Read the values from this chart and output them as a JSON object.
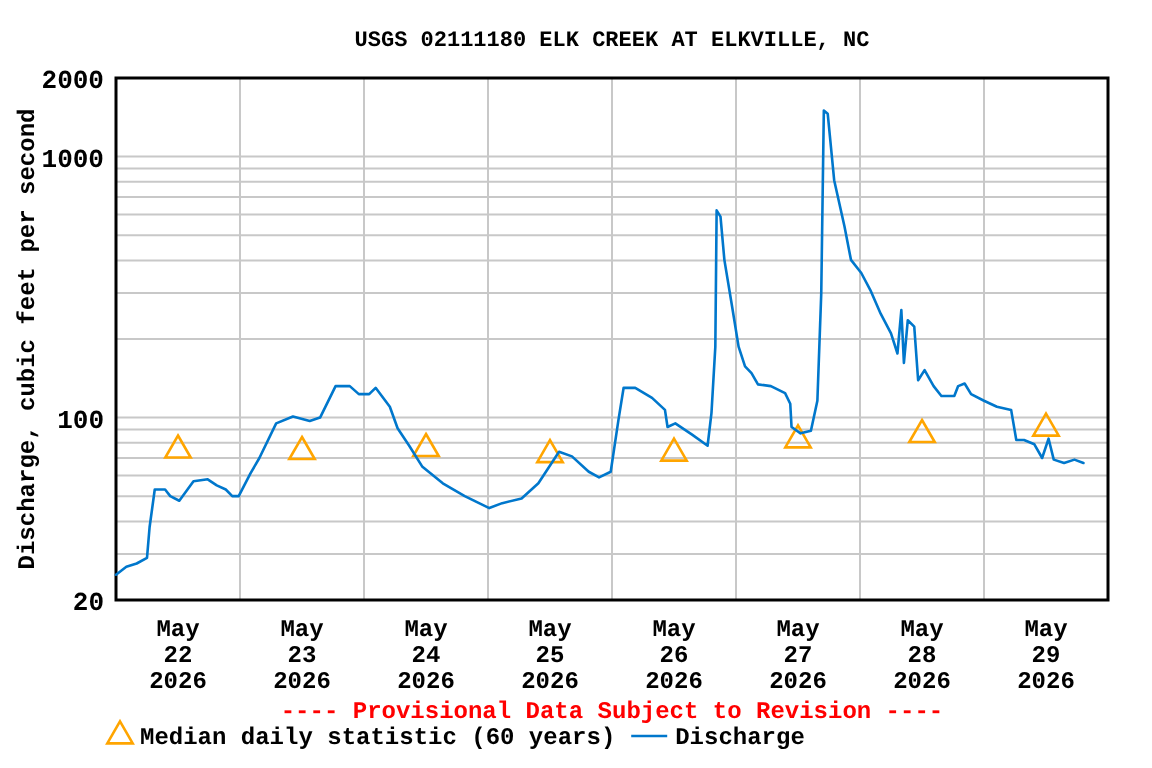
{
  "chart_data": {
    "type": "line",
    "title": "USGS 02111180 ELK CREEK AT ELKVILLE, NC",
    "ylabel": "Discharge, cubic feet per second",
    "annotations": [
      "---- Provisional Data Subject to Revision ----"
    ],
    "log": "y",
    "grid": true,
    "legend": "bottom",
    "xlim": [
      "2026-05-22T00:00",
      "2026-05-30T00:00"
    ],
    "xticks": [
      {
        "value": "2026-05-22T00:00",
        "label": null
      },
      {
        "value": "2026-05-22T12:00",
        "label": "May\n22\n2026"
      },
      {
        "value": "2026-05-23T00:00",
        "label": null
      },
      {
        "value": "2026-05-23T12:00",
        "label": "May\n23\n2026"
      },
      {
        "value": "2026-05-24T00:00",
        "label": null
      },
      {
        "value": "2026-05-24T12:00",
        "label": "May\n24\n2026"
      },
      {
        "value": "2026-05-25T00:00",
        "label": null
      },
      {
        "value": "2026-05-25T12:00",
        "label": "May\n25\n2026"
      },
      {
        "value": "2026-05-26T00:00",
        "label": null
      },
      {
        "value": "2026-05-26T12:00",
        "label": "May\n26\n2026"
      },
      {
        "value": "2026-05-27T00:00",
        "label": null
      },
      {
        "value": "2026-05-27T12:00",
        "label": "May\n27\n2026"
      },
      {
        "value": "2026-05-28T00:00",
        "label": null
      },
      {
        "value": "2026-05-28T12:00",
        "label": "May\n28\n2026"
      },
      {
        "value": "2026-05-29T00:00",
        "label": null
      },
      {
        "value": "2026-05-29T12:00",
        "label": "May\n29\n2026"
      },
      {
        "value": "2026-05-30T00:00",
        "label": null
      }
    ],
    "ylim": [
      20,
      2000
    ],
    "yticks": [
      20,
      {
        "value": 30,
        "label": null
      },
      {
        "value": 40,
        "label": null
      },
      {
        "value": 50,
        "label": null
      },
      {
        "value": 60,
        "label": null
      },
      {
        "value": 70,
        "label": null
      },
      {
        "value": 80,
        "label": null
      },
      {
        "value": 90,
        "label": null
      },
      100,
      {
        "value": 200,
        "label": null
      },
      {
        "value": 300,
        "label": null
      },
      {
        "value": 400,
        "label": null
      },
      {
        "value": 500,
        "label": null
      },
      {
        "value": 600,
        "label": null
      },
      {
        "value": 700,
        "label": null
      },
      {
        "value": 800,
        "label": null
      },
      {
        "value": 900,
        "label": null
      },
      1000,
      2000
    ],
    "series": [
      {
        "name": "Median daily statistic (60 years)",
        "type": "scatter",
        "marker": "triangle",
        "color": "#ffa500",
        "x": [
          "2026-05-22T12:00",
          "2026-05-23T12:00",
          "2026-05-24T12:00",
          "2026-05-25T12:00",
          "2026-05-26T12:00",
          "2026-05-27T12:00",
          "2026-05-28T12:00",
          "2026-05-29T12:00"
        ],
        "values": [
          75,
          74,
          76,
          72,
          73,
          82,
          86,
          91
        ]
      },
      {
        "name": "Discharge",
        "marker": "none",
        "line_style": "solid",
        "color": "#0077cc",
        "x": [
          "2026-05-22T00:00",
          "2026-05-22T02:00",
          "2026-05-22T04:00",
          "2026-05-22T06:00",
          "2026-05-22T06:30",
          "2026-05-22T07:30",
          "2026-05-22T09:30",
          "2026-05-22T10:30",
          "2026-05-22T12:15",
          "2026-05-22T15:00",
          "2026-05-22T17:45",
          "2026-05-22T19:30",
          "2026-05-22T21:15",
          "2026-05-22T22:30",
          "2026-05-22T23:45",
          "2026-05-23T02:00",
          "2026-05-23T03:45",
          "2026-05-23T07:00",
          "2026-05-23T10:15",
          "2026-05-23T13:30",
          "2026-05-23T15:30",
          "2026-05-23T18:30",
          "2026-05-23T21:15",
          "2026-05-23T23:00",
          "2026-05-24T01:00",
          "2026-05-24T02:15",
          "2026-05-24T05:00",
          "2026-05-24T06:30",
          "2026-05-24T08:45",
          "2026-05-24T11:15",
          "2026-05-24T15:15",
          "2026-05-24T19:30",
          "2026-05-25T00:15",
          "2026-05-25T02:45",
          "2026-05-25T06:30",
          "2026-05-25T09:45",
          "2026-05-25T13:45",
          "2026-05-25T16:15",
          "2026-05-25T19:30",
          "2026-05-25T21:30",
          "2026-05-25T23:45",
          "2026-05-26T01:15",
          "2026-05-26T02:15",
          "2026-05-26T04:30",
          "2026-05-26T07:45",
          "2026-05-26T10:15",
          "2026-05-26T10:45",
          "2026-05-26T12:15",
          "2026-05-26T15:30",
          "2026-05-26T18:30",
          "2026-05-26T19:15",
          "2026-05-26T20:00",
          "2026-05-26T20:15",
          "2026-05-26T21:00",
          "2026-05-26T21:45",
          "2026-05-26T23:15",
          "2026-05-27T00:30",
          "2026-05-27T01:45",
          "2026-05-27T03:00",
          "2026-05-27T04:15",
          "2026-05-27T06:45",
          "2026-05-27T09:30",
          "2026-05-27T10:30",
          "2026-05-27T10:45",
          "2026-05-27T12:30",
          "2026-05-27T14:30",
          "2026-05-27T15:45",
          "2026-05-27T16:30",
          "2026-05-27T17:00",
          "2026-05-27T17:45",
          "2026-05-27T19:00",
          "2026-05-27T21:00",
          "2026-05-27T22:15",
          "2026-05-28T00:15",
          "2026-05-28T02:00",
          "2026-05-28T04:00",
          "2026-05-28T06:00",
          "2026-05-28T07:15",
          "2026-05-28T08:00",
          "2026-05-28T08:30",
          "2026-05-28T09:15",
          "2026-05-28T10:30",
          "2026-05-28T11:15",
          "2026-05-28T12:30",
          "2026-05-28T14:15",
          "2026-05-28T15:45",
          "2026-05-28T18:15",
          "2026-05-28T19:00",
          "2026-05-28T20:15",
          "2026-05-28T21:30",
          "2026-05-29T00:00",
          "2026-05-29T02:30",
          "2026-05-29T05:15",
          "2026-05-29T06:15",
          "2026-05-29T07:45",
          "2026-05-29T09:45",
          "2026-05-29T11:15",
          "2026-05-29T12:30",
          "2026-05-29T13:30",
          "2026-05-29T15:30",
          "2026-05-29T17:30",
          "2026-05-29T19:15"
        ],
        "values": [
          25,
          26.8,
          27.6,
          29,
          38,
          53,
          53,
          50,
          48,
          57,
          58,
          55,
          53,
          50,
          50,
          61,
          70,
          95,
          101,
          97,
          100,
          132,
          132,
          123,
          123,
          130,
          110,
          91,
          78,
          65,
          56,
          50,
          45,
          47,
          49,
          56,
          74,
          71,
          62,
          59,
          62,
          98,
          130,
          130,
          119,
          107,
          92,
          95,
          86,
          78,
          104,
          187,
          622,
          589,
          402,
          266,
          187,
          157,
          148,
          134,
          132,
          124,
          113,
          92,
          87,
          89,
          116,
          299,
          1500,
          1460,
          812,
          540,
          402,
          358,
          308,
          250,
          210,
          176,
          258,
          162,
          236,
          223,
          139,
          152,
          132,
          121,
          121,
          132,
          135,
          123,
          116,
          110,
          107,
          82,
          82,
          79,
          70,
          83,
          69,
          67,
          69,
          67
        ]
      }
    ]
  }
}
